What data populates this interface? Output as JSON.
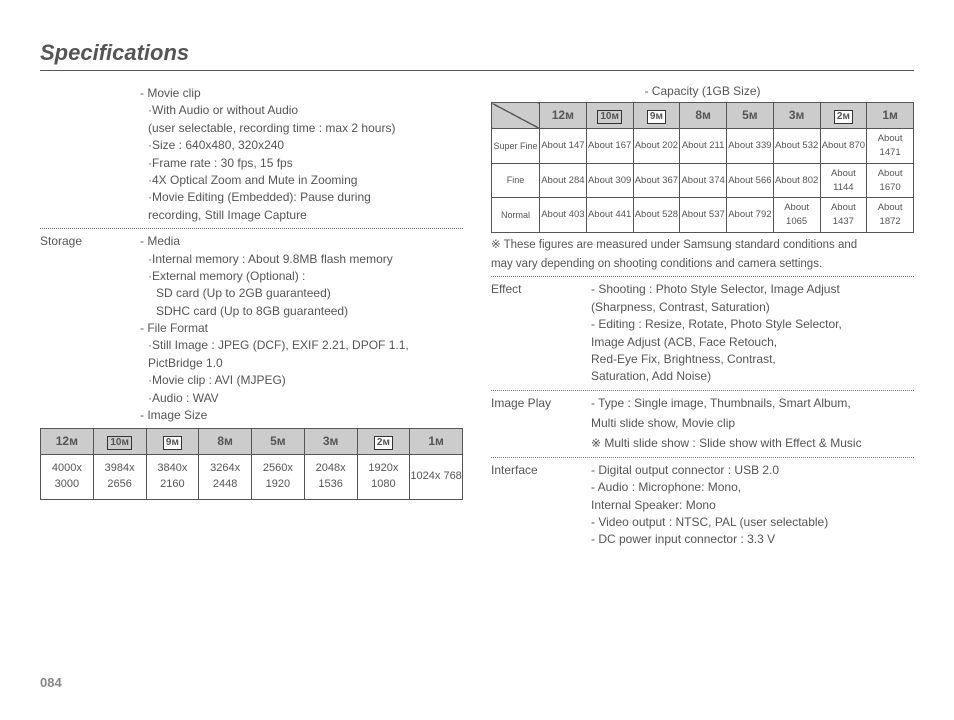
{
  "page_title": "Specifications",
  "page_number": "084",
  "left": {
    "movie": {
      "head": "- Movie clip",
      "l1": "·With Audio or without Audio",
      "l2": " (user selectable, recording time : max 2 hours)",
      "l3": "·Size : 640x480, 320x240",
      "l4": "·Frame rate : 30 fps, 15 fps",
      "l5": "·4X Optical Zoom and Mute in Zooming",
      "l6": "·Movie Editing (Embedded): Pause during",
      "l7": "  recording, Still Image Capture"
    },
    "storage_label": "Storage",
    "storage": {
      "media": "- Media",
      "m1": "·Internal memory : About 9.8MB flash memory",
      "m2": "·External memory (Optional) :",
      "m3": " SD card (Up to 2GB guaranteed)",
      "m4": " SDHC card (Up to 8GB guaranteed)",
      "ff": "- File Format",
      "f1": "·Still Image : JPEG (DCF), EXIF 2.21, DPOF 1.1,",
      "f2": "                     PictBridge 1.0",
      "f3": "·Movie clip : AVI (MJPEG)",
      "f4": "·Audio : WAV",
      "is": "- Image Size"
    },
    "size_table": {
      "headers_plain": [
        "12ᴍ",
        "",
        "",
        "8ᴍ",
        "5ᴍ",
        "3ᴍ",
        "",
        "1ᴍ"
      ],
      "headers_boxed": [
        "",
        "10ᴍ",
        "9ᴍ",
        "",
        "",
        "",
        "2ᴍ",
        ""
      ],
      "row": [
        "4000x 3000",
        "3984x 2656",
        "3840x 2160",
        "3264x 2448",
        "2560x 1920",
        "2048x 1536",
        "1920x 1080",
        "1024x 768"
      ]
    }
  },
  "right": {
    "cap_head": "- Capacity (1GB Size)",
    "cap_table": {
      "headers_plain": [
        "12ᴍ",
        "",
        "",
        "8ᴍ",
        "5ᴍ",
        "3ᴍ",
        "",
        "1ᴍ"
      ],
      "headers_boxed": [
        "",
        "10ᴍ",
        "9ᴍ",
        "",
        "",
        "",
        "2ᴍ",
        ""
      ],
      "rows": [
        {
          "label": "Super Fine",
          "cells": [
            "About 147",
            "About 167",
            "About 202",
            "About 211",
            "About 339",
            "About 532",
            "About 870",
            "About 1471"
          ]
        },
        {
          "label": "Fine",
          "cells": [
            "About 284",
            "About 309",
            "About 367",
            "About 374",
            "About 566",
            "About 802",
            "About 1144",
            "About 1670"
          ]
        },
        {
          "label": "Normal",
          "cells": [
            "About 403",
            "About 441",
            "About 528",
            "About 537",
            "About 792",
            "About 1065",
            "About 1437",
            "About 1872"
          ]
        }
      ]
    },
    "note1": "※ These figures are measured under Samsung standard conditions and",
    "note2": "     may vary depending on shooting conditions and camera settings.",
    "effect_label": "Effect",
    "effect": {
      "l1": "- Shooting : Photo Style Selector, Image Adjust",
      "l2": "                 (Sharpness, Contrast, Saturation)",
      "l3": "- Editing : Resize, Rotate, Photo Style Selector,",
      "l4": "               Image Adjust (ACB, Face Retouch,",
      "l5": "               Red-Eye Fix, Brightness, Contrast,",
      "l6": "               Saturation, Add Noise)"
    },
    "ip_label": "Image Play",
    "ip": {
      "l1": "- Type : Single image, Thumbnails, Smart Album,",
      "l2": "             Multi slide show, Movie clip",
      "l3": "※ Multi slide show : Slide show with Effect & Music"
    },
    "if_label": "Interface",
    "if": {
      "l1": "- Digital output connector : USB 2.0",
      "l2": "- Audio : Microphone: Mono,",
      "l3": "             Internal Speaker: Mono",
      "l4": "- Video output : NTSC, PAL (user selectable)",
      "l5": "- DC power input connector : 3.3 V"
    }
  }
}
